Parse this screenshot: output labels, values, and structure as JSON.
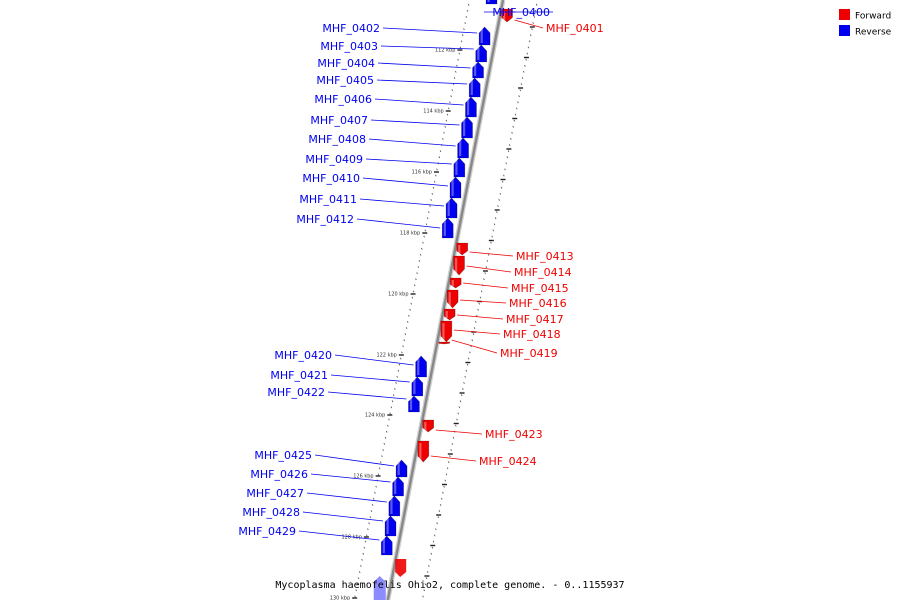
{
  "caption": "Mycoplasma haemofelis Ohio2, complete genome. - 0..1155937",
  "colors": {
    "forward": "#ee0000",
    "reverse": "#0000ee",
    "backbone": "#888888"
  },
  "legend": [
    {
      "label": "Forward",
      "color": "#ee0000"
    },
    {
      "label": "Reverse",
      "color": "#0000ee"
    }
  ],
  "tick_labels": [
    "112 kbp",
    "114 kbp",
    "116 kbp",
    "118 kbp",
    "120 kbp",
    "122 kbp",
    "124 kbp",
    "126 kbp",
    "128 kbp",
    "130 kbp"
  ],
  "genes": [
    {
      "name": "MHF_0400",
      "strand": "reverse"
    },
    {
      "name": "MHF_0401",
      "strand": "forward"
    },
    {
      "name": "MHF_0402",
      "strand": "reverse"
    },
    {
      "name": "MHF_0403",
      "strand": "reverse"
    },
    {
      "name": "MHF_0404",
      "strand": "reverse"
    },
    {
      "name": "MHF_0405",
      "strand": "reverse"
    },
    {
      "name": "MHF_0406",
      "strand": "reverse"
    },
    {
      "name": "MHF_0407",
      "strand": "reverse"
    },
    {
      "name": "MHF_0408",
      "strand": "reverse"
    },
    {
      "name": "MHF_0409",
      "strand": "reverse"
    },
    {
      "name": "MHF_0410",
      "strand": "reverse"
    },
    {
      "name": "MHF_0411",
      "strand": "reverse"
    },
    {
      "name": "MHF_0412",
      "strand": "reverse"
    },
    {
      "name": "MHF_0413",
      "strand": "forward"
    },
    {
      "name": "MHF_0414",
      "strand": "forward"
    },
    {
      "name": "MHF_0415",
      "strand": "forward"
    },
    {
      "name": "MHF_0416",
      "strand": "forward"
    },
    {
      "name": "MHF_0417",
      "strand": "forward"
    },
    {
      "name": "MHF_0418",
      "strand": "forward"
    },
    {
      "name": "MHF_0419",
      "strand": "forward"
    },
    {
      "name": "MHF_0420",
      "strand": "reverse"
    },
    {
      "name": "MHF_0421",
      "strand": "reverse"
    },
    {
      "name": "MHF_0422",
      "strand": "reverse"
    },
    {
      "name": "MHF_0423",
      "strand": "forward"
    },
    {
      "name": "MHF_0424",
      "strand": "forward"
    },
    {
      "name": "MHF_0425",
      "strand": "reverse"
    },
    {
      "name": "MHF_0426",
      "strand": "reverse"
    },
    {
      "name": "MHF_0427",
      "strand": "reverse"
    },
    {
      "name": "MHF_0428",
      "strand": "reverse"
    },
    {
      "name": "MHF_0429",
      "strand": "reverse"
    }
  ]
}
